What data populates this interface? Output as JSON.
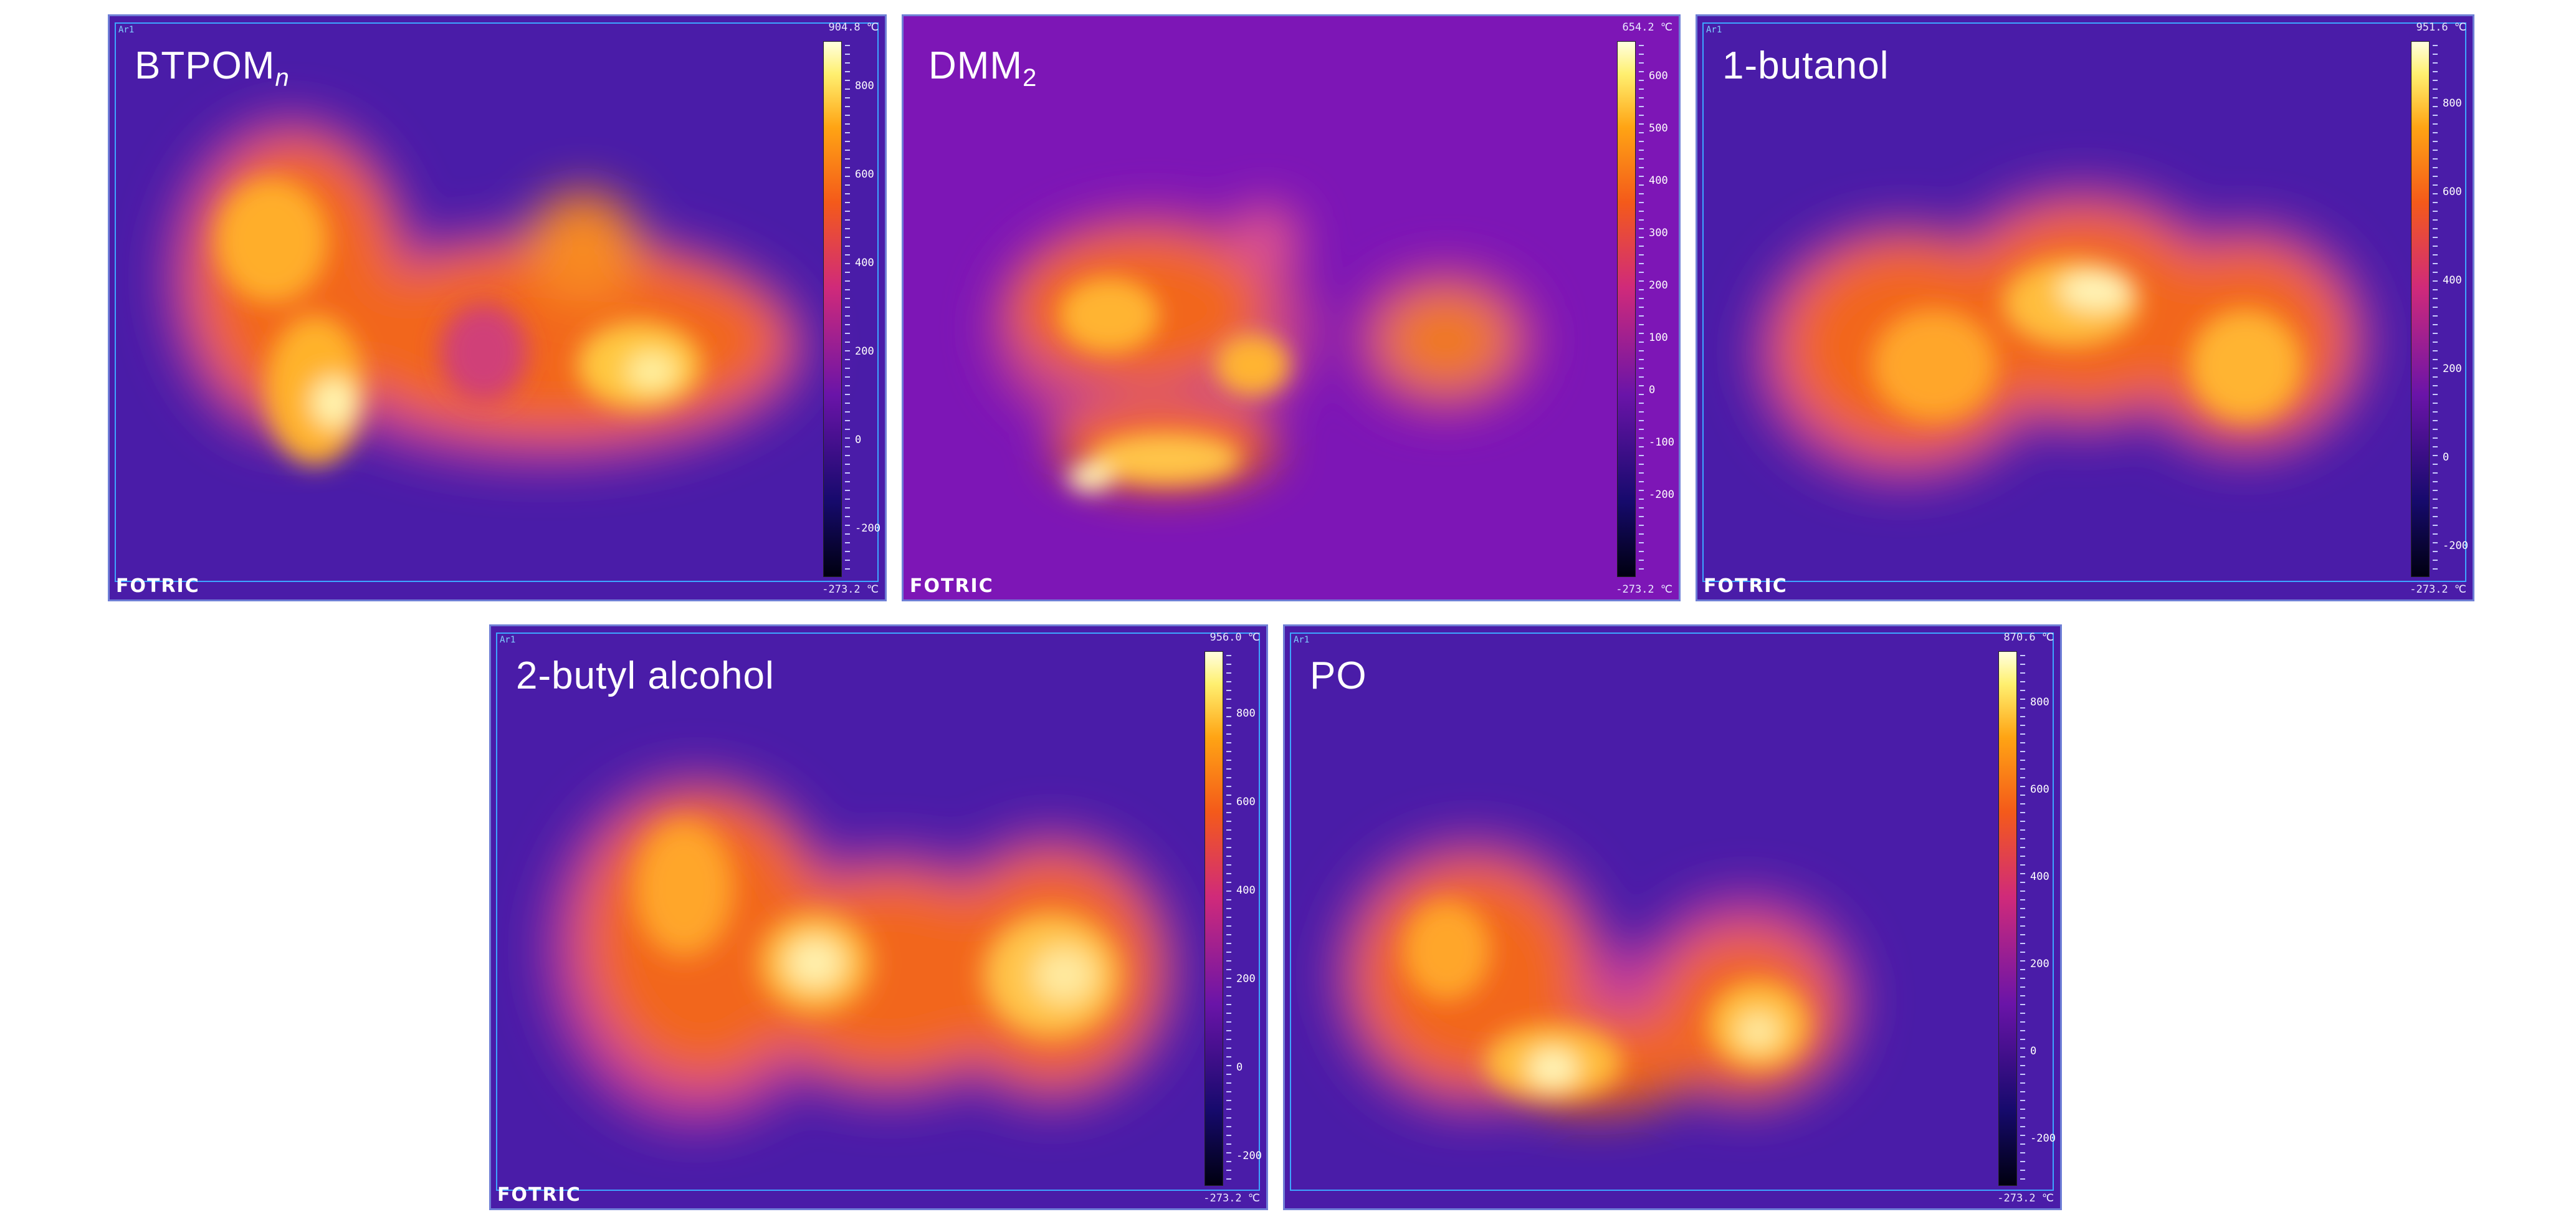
{
  "figure": {
    "panels": [
      {
        "id": "btpom",
        "label": "BTPOM",
        "label_sub": "n",
        "sub_italic": true,
        "brand": "FOTRIC",
        "roi": "Ar1",
        "t_max": "904.8 ℃",
        "t_min": "-273.2 ℃",
        "ticks": [
          "800",
          "600",
          "400",
          "200",
          "0",
          "-200"
        ],
        "background": "#4a1ca8"
      },
      {
        "id": "dmm2",
        "label": "DMM",
        "label_sub": "2",
        "sub_italic": false,
        "brand": "FOTRIC",
        "roi": "",
        "t_max": "654.2 ℃",
        "t_min": "-273.2 ℃",
        "ticks": [
          "600",
          "500",
          "400",
          "300",
          "200",
          "100",
          "0",
          "-100",
          "-200"
        ],
        "background": "#7d16b6"
      },
      {
        "id": "butanol1",
        "label": "1-butanol",
        "label_sub": "",
        "sub_italic": false,
        "brand": "FOTRIC",
        "roi": "Ar1",
        "t_max": "951.6 ℃",
        "t_min": "-273.2 ℃",
        "ticks": [
          "800",
          "600",
          "400",
          "200",
          "0",
          "-200"
        ],
        "background": "#4a1ca8"
      },
      {
        "id": "butyl2",
        "label": "2-butyl alcohol",
        "label_sub": "",
        "sub_italic": false,
        "brand": "FOTRIC",
        "roi": "Ar1",
        "t_max": "956.0 ℃",
        "t_min": "-273.2 ℃",
        "ticks": [
          "800",
          "600",
          "400",
          "200",
          "0",
          "-200"
        ],
        "background": "#4a1ca8"
      },
      {
        "id": "po",
        "label": "PO",
        "label_sub": "",
        "sub_italic": false,
        "brand": "",
        "roi": "Ar1",
        "t_max": "870.6 ℃",
        "t_min": "-273.2 ℃",
        "ticks": [
          "800",
          "600",
          "400",
          "200",
          "0",
          "-200"
        ],
        "background": "#4a1ca8"
      }
    ],
    "colormap": "iron thermal palette (black → indigo → purple → magenta → orange → yellow → white)"
  }
}
